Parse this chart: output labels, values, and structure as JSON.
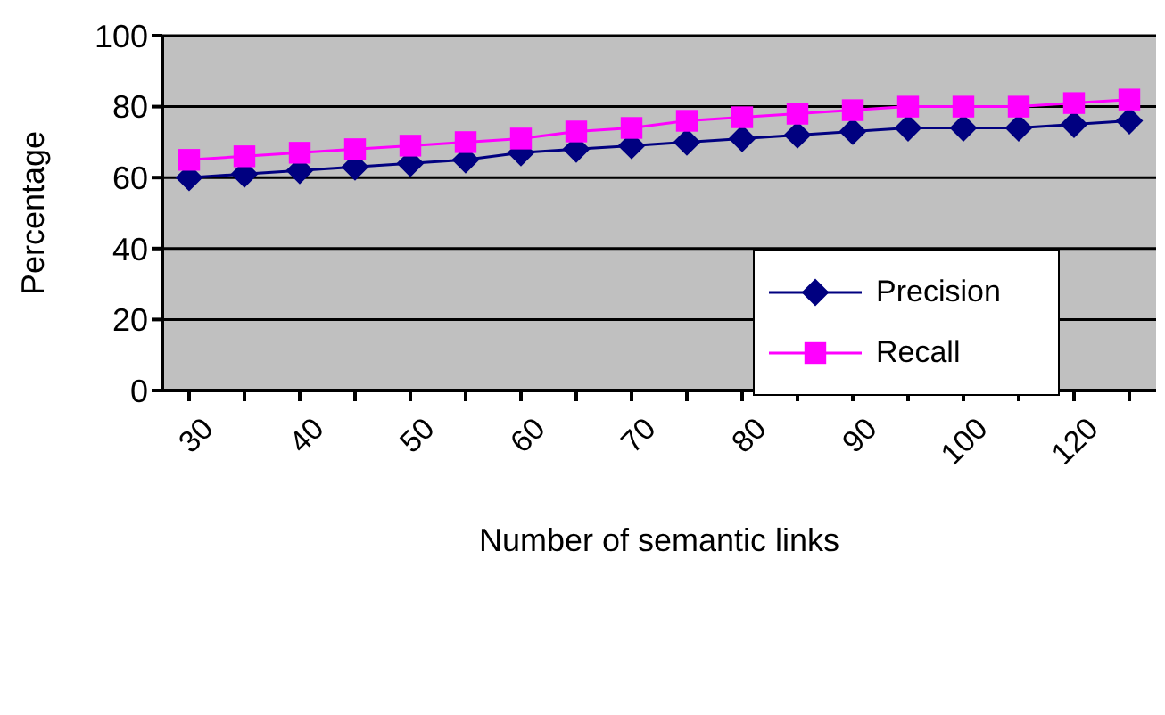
{
  "chart_data": {
    "type": "line",
    "xlabel": "Number of semantic links",
    "ylabel": "Percentage",
    "categories": [
      "30",
      null,
      "40",
      null,
      "50",
      null,
      "60",
      null,
      "70",
      null,
      "80",
      null,
      "90",
      null,
      "100",
      null,
      "120",
      null
    ],
    "series": [
      {
        "name": "Precision",
        "color": "#000080",
        "marker": "diamond",
        "values": [
          60,
          61,
          62,
          63,
          64,
          65,
          67,
          68,
          69,
          70,
          71,
          72,
          73,
          74,
          74,
          74,
          75,
          76
        ]
      },
      {
        "name": "Recall",
        "color": "#ff00ff",
        "marker": "square",
        "values": [
          65,
          66,
          67,
          68,
          69,
          70,
          71,
          73,
          74,
          76,
          77,
          78,
          79,
          80,
          80,
          80,
          81,
          82
        ]
      }
    ],
    "ylim": [
      0,
      100
    ],
    "yticks": [
      0,
      20,
      40,
      60,
      80,
      100
    ],
    "grid": "y",
    "legend": "right"
  }
}
